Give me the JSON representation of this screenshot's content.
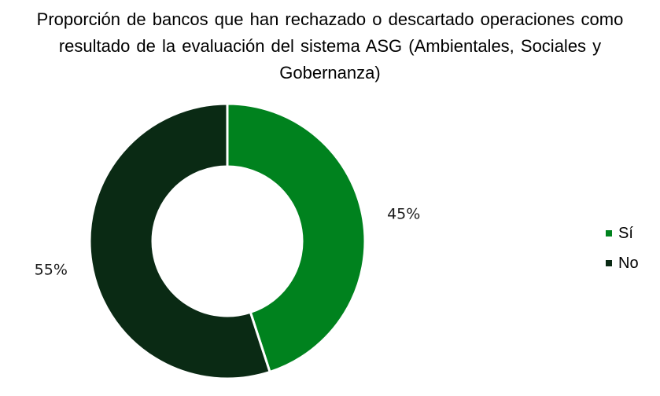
{
  "chart_data": {
    "type": "pie",
    "donut": true,
    "title": "Proporción de bancos que han rechazado o descartado operaciones como resultado de la evaluación del sistema ASG (Ambientales, Sociales y Gobernanza)",
    "categories": [
      "Sí",
      "No"
    ],
    "values": [
      45,
      55
    ],
    "data_labels": [
      "45%",
      "55%"
    ],
    "colors": [
      "#00821E",
      "#0A2A14"
    ],
    "legend_position": "right"
  }
}
